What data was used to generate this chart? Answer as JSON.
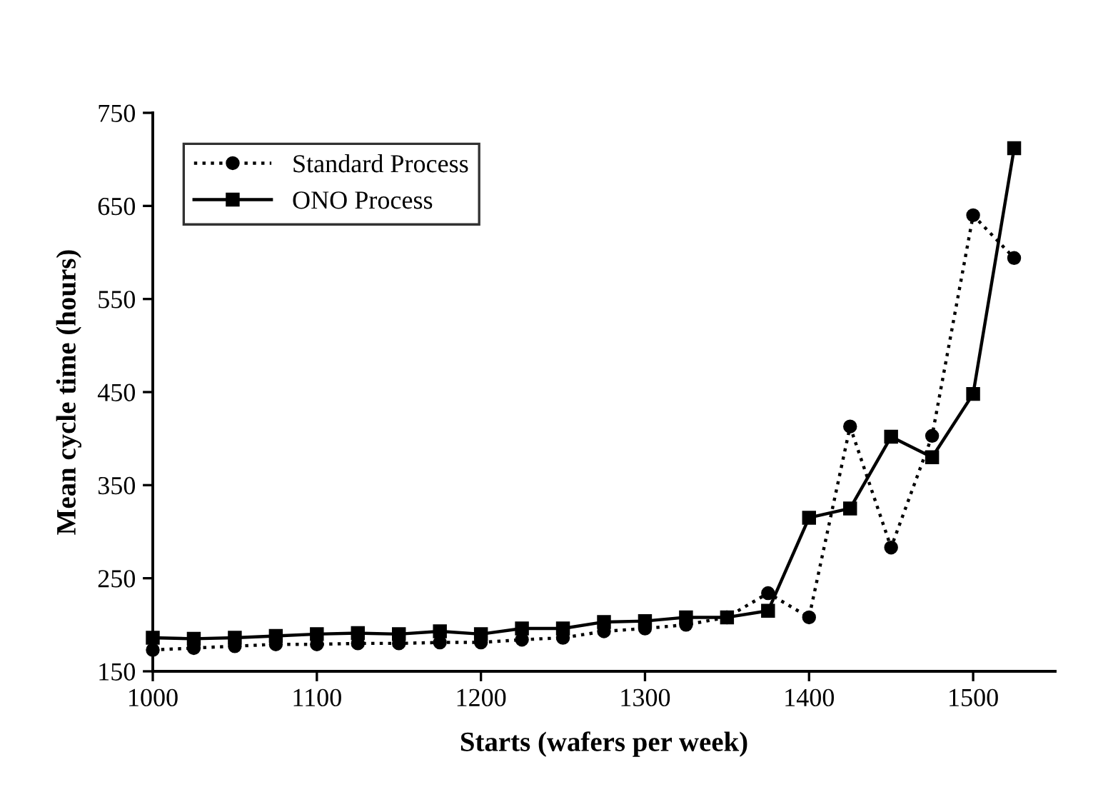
{
  "chart_data": {
    "type": "line",
    "xlabel": "Starts (wafers per week)",
    "ylabel": "Mean cycle time (hours)",
    "xlim": [
      1000,
      1550
    ],
    "xticks": [
      1000,
      1100,
      1200,
      1300,
      1400,
      1500
    ],
    "ylim": [
      150,
      750
    ],
    "yticks": [
      150,
      250,
      350,
      450,
      550,
      650,
      750
    ],
    "grid": false,
    "legend": "top left",
    "x": [
      1000,
      1025,
      1050,
      1075,
      1100,
      1125,
      1150,
      1175,
      1200,
      1225,
      1250,
      1275,
      1300,
      1325,
      1350,
      1375,
      1400,
      1425,
      1450,
      1475,
      1500,
      1525
    ],
    "series": [
      {
        "name": "Standard Process",
        "color": "#000000",
        "marker": "circle",
        "line_style": "dotted",
        "values": [
          173,
          175,
          177,
          179,
          179,
          180,
          180,
          181,
          181,
          184,
          186,
          193,
          196,
          200,
          208,
          234,
          208,
          413,
          283,
          403,
          640,
          594
        ]
      },
      {
        "name": "ONO Process",
        "color": "#000000",
        "marker": "square",
        "line_style": "solid",
        "values": [
          186,
          185,
          186,
          188,
          190,
          191,
          190,
          193,
          190,
          196,
          196,
          203,
          204,
          208,
          208,
          215,
          315,
          325,
          402,
          380,
          448,
          712
        ]
      }
    ]
  }
}
